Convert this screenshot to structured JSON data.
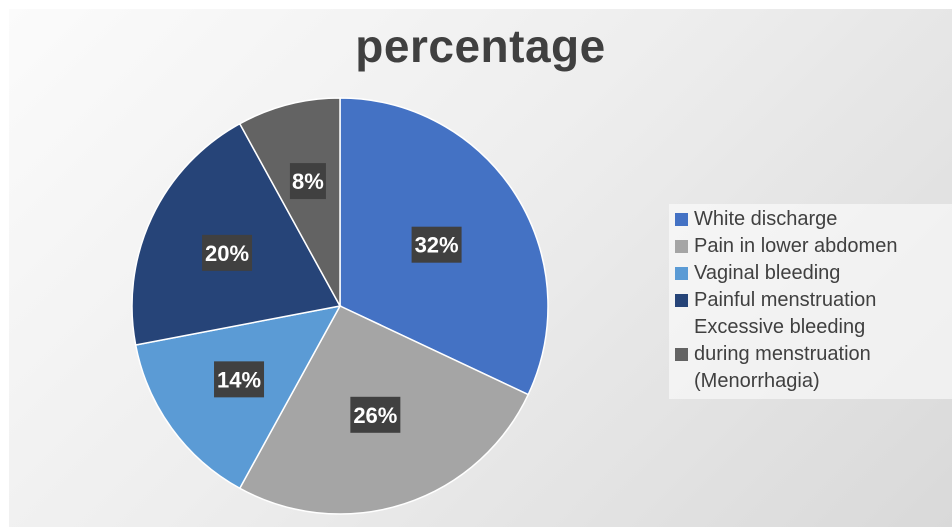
{
  "chart_data": {
    "type": "pie",
    "title": "percentage",
    "categories": [
      "White discharge",
      "Pain in lower abdomen",
      "Vaginal bleeding",
      "Painful menstruation",
      "Excessive bleeding during menstruation (Menorrhagia)"
    ],
    "values": [
      32,
      26,
      14,
      20,
      8
    ],
    "data_labels": [
      "32%",
      "26%",
      "14%",
      "20%",
      "8%"
    ],
    "colors": [
      "#4472c4",
      "#a5a5a5",
      "#5b9bd5",
      "#264478",
      "#636363"
    ],
    "legend_position": "right"
  },
  "legend": {
    "items": [
      {
        "label": "White discharge",
        "color": "#4472c4"
      },
      {
        "label": "Pain in lower abdomen",
        "color": "#a5a5a5"
      },
      {
        "label": "Vaginal bleeding",
        "color": "#5b9bd5"
      },
      {
        "label": "Painful menstruation",
        "color": "#264478"
      },
      {
        "label_lines": [
          "Excessive bleeding",
          "during menstruation",
          "(Menorrhagia)"
        ],
        "color": "#636363"
      }
    ]
  }
}
